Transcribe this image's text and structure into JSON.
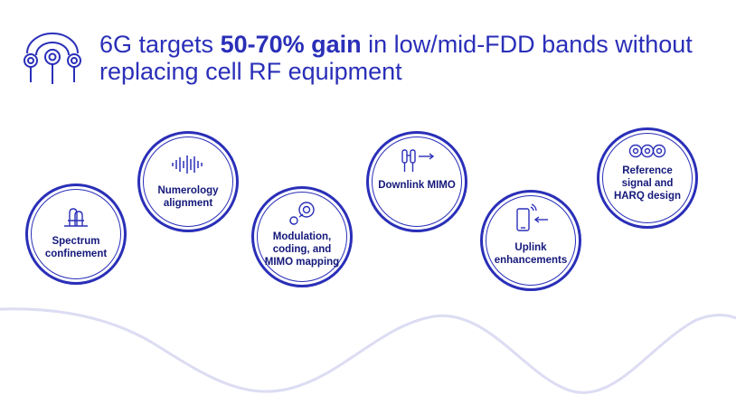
{
  "header": {
    "title_pre": "6G targets ",
    "title_bold": "50-70% gain",
    "title_post": " in low/mid-FDD bands without replacing cell RF equipment",
    "logo_icon": "antenna-array-icon"
  },
  "colors": {
    "primary": "#2a2fb8",
    "label": "#14187a",
    "wave": "#dcdcf3"
  },
  "nodes": [
    {
      "label": "Spectrum confinement",
      "icon": "spectrum-filter-icon"
    },
    {
      "label": "Numerology alignment",
      "icon": "waveform-icon"
    },
    {
      "label": "Modulation, coding, and MIMO mapping",
      "icon": "modulation-icon"
    },
    {
      "label": "Downlink MIMO",
      "icon": "antenna-downlink-icon"
    },
    {
      "label": "Uplink enhancements",
      "icon": "phone-uplink-icon"
    },
    {
      "label": "Reference signal and HARQ design",
      "icon": "linked-rings-icon"
    }
  ]
}
